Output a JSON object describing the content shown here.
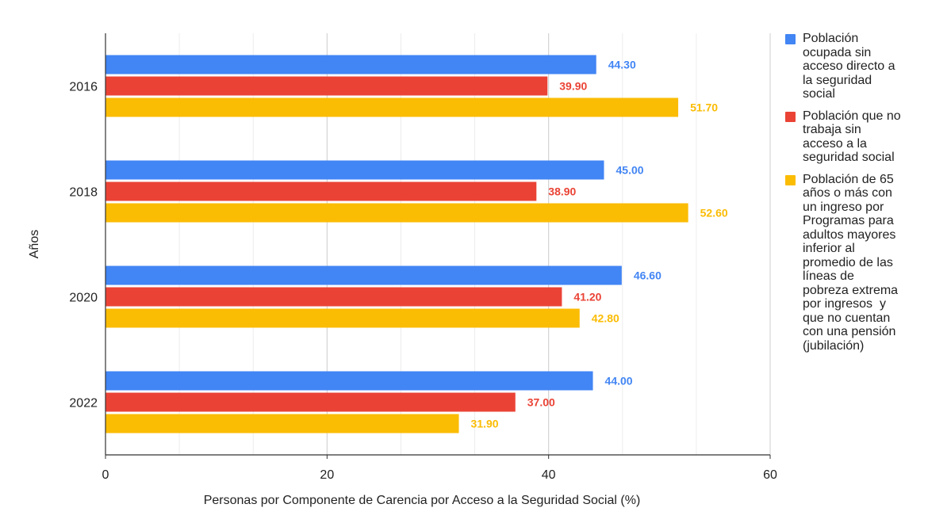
{
  "chart_data": {
    "type": "bar",
    "orientation": "horizontal",
    "categories": [
      "2016",
      "2018",
      "2020",
      "2022"
    ],
    "series": [
      {
        "name": "Población ocupada sin acceso directo a la seguridad social",
        "color": "#4285f4",
        "values": [
          44.3,
          45.0,
          46.6,
          44.0
        ],
        "labels": [
          "44.30",
          "45.00",
          "46.60",
          "44.00"
        ]
      },
      {
        "name": "Población que no trabaja sin acceso a la seguridad social",
        "color": "#ea4335",
        "values": [
          39.9,
          38.9,
          41.2,
          37.0
        ],
        "labels": [
          "39.90",
          "38.90",
          "41.20",
          "37.00"
        ]
      },
      {
        "name": "Población de 65 años o más con un ingreso por Programas para adultos mayores inferior al promedio de las líneas de pobreza extrema por ingresos  y que no cuentan con una pensión (jubilación)",
        "color": "#fbbc04",
        "values": [
          51.7,
          52.6,
          42.8,
          31.9
        ],
        "labels": [
          "51.70",
          "52.60",
          "42.80",
          "31.90"
        ]
      }
    ],
    "xlim": [
      0,
      60
    ],
    "xticks": [
      "0",
      "20",
      "40",
      "60"
    ],
    "xlabel": "Personas por Componente de Carencia por Acceso a la Seguridad Social (%)",
    "ylabel": "Años",
    "title": "",
    "legend_position": "right",
    "grid": true
  },
  "legend": {
    "items": [
      {
        "label": "Población\nocupada sin\nacceso directo a\nla seguridad\nsocial",
        "color": "#4285f4"
      },
      {
        "label": "Población que no\ntrabaja sin\nacceso a la\nseguridad social",
        "color": "#ea4335"
      },
      {
        "label": "Población de 65\naños o más con\nun ingreso por\nProgramas para\nadultos mayores\ninferior al\npromedio de las\nlíneas de\npobreza extrema\npor ingresos  y\nque no cuentan\ncon una pensión\n(jubilación)",
        "color": "#fbbc04"
      }
    ]
  }
}
